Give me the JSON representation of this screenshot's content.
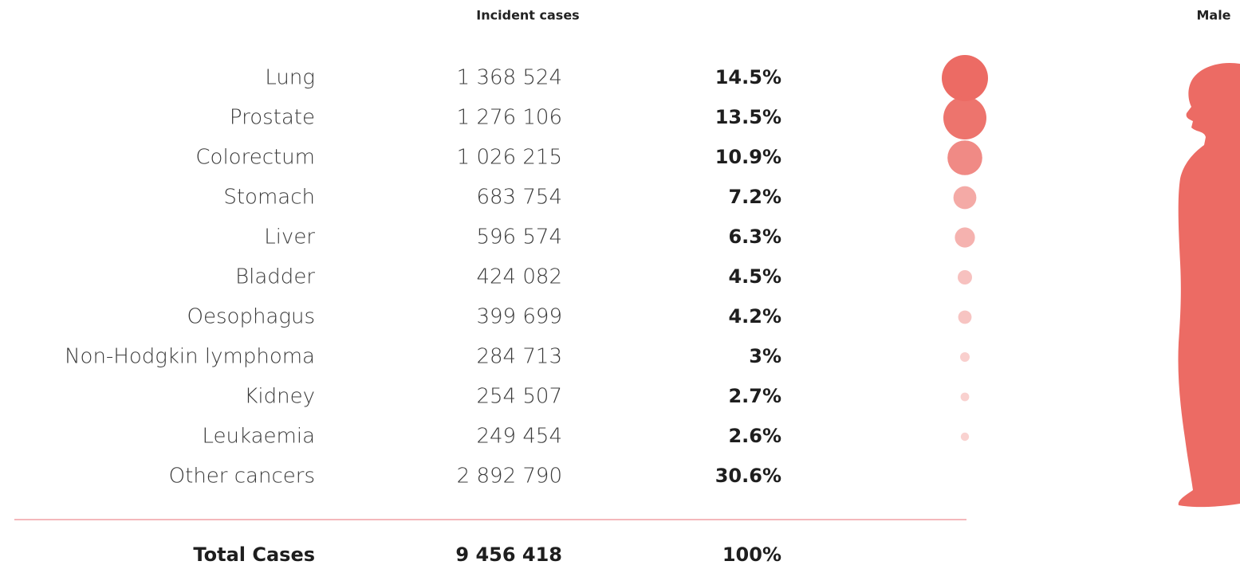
{
  "header": {
    "title": "Incident cases",
    "figure_label": "Male"
  },
  "table": {
    "rows": [
      {
        "site": "Lung",
        "cases": "1 368 524",
        "share": {
          "value": 14.5,
          "label": "14.5%"
        }
      },
      {
        "site": "Prostate",
        "cases": "1 276 106",
        "share": {
          "value": 13.5,
          "label": "13.5%"
        }
      },
      {
        "site": "Colorectum",
        "cases": "1 026 215",
        "share": {
          "value": 10.9,
          "label": "10.9%"
        }
      },
      {
        "site": "Stomach",
        "cases": "683 754",
        "share": {
          "value": 7.2,
          "label": "7.2%"
        }
      },
      {
        "site": "Liver",
        "cases": "596 574",
        "share": {
          "value": 6.3,
          "label": "6.3%"
        }
      },
      {
        "site": "Bladder",
        "cases": "424 082",
        "share": {
          "value": 4.5,
          "label": "4.5%"
        }
      },
      {
        "site": "Oesophagus",
        "cases": "399 699",
        "share": {
          "value": 4.2,
          "label": "4.2%"
        }
      },
      {
        "site": "Non-Hodgkin lymphoma",
        "cases": "284 713",
        "share": {
          "value": 3,
          "label": "3%"
        }
      },
      {
        "site": "Kidney",
        "cases": "254 507",
        "share": {
          "value": 2.7,
          "label": "2.7%"
        }
      },
      {
        "site": "Leukaemia",
        "cases": "249 454",
        "share": {
          "value": 2.6,
          "label": "2.6%"
        }
      }
    ],
    "other": {
      "site": "Other cancers",
      "cases": "2 892 790",
      "share": {
        "value": 30.6,
        "label": "30.6%"
      }
    },
    "total": {
      "site": "Total Cases",
      "cases": "9 456 418",
      "share": {
        "value": 100,
        "label": "100%"
      }
    }
  }
}
